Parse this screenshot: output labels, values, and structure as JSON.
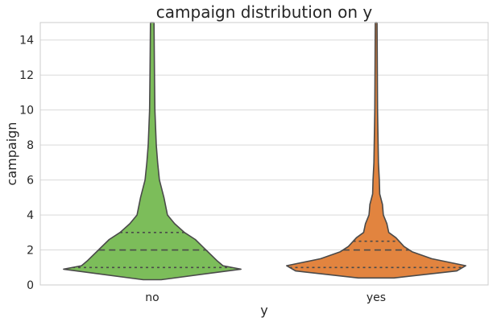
{
  "chart_data": {
    "type": "violin",
    "title": "campaign distribution on y",
    "xlabel": "y",
    "ylabel": "campaign",
    "ylim": [
      0,
      15
    ],
    "yticks": [
      0,
      2,
      4,
      6,
      8,
      10,
      12,
      14
    ],
    "grid": "horizontal",
    "categories": [
      "no",
      "yes"
    ],
    "colors": {
      "no": "#7cbd5a",
      "yes": "#e2843f",
      "outline": "#4a4a4a",
      "grid": "#d9d9d9",
      "axis": "#cccccc"
    },
    "series": [
      {
        "category": "no",
        "quartiles": {
          "q1": 1,
          "median": 2,
          "q3": 3
        },
        "profile": [
          [
            0.3,
            0.1
          ],
          [
            0.9,
            0.99
          ],
          [
            1.1,
            0.79
          ],
          [
            1.4,
            0.72
          ],
          [
            2.0,
            0.6
          ],
          [
            2.6,
            0.48
          ],
          [
            3.0,
            0.36
          ],
          [
            3.5,
            0.25
          ],
          [
            4.0,
            0.17
          ],
          [
            5.0,
            0.13
          ],
          [
            6.0,
            0.08
          ],
          [
            7.0,
            0.06
          ],
          [
            8.0,
            0.045
          ],
          [
            10.0,
            0.03
          ],
          [
            12.0,
            0.025
          ],
          [
            15.0,
            0.02
          ]
        ]
      },
      {
        "category": "yes",
        "quartiles": {
          "q1": 1,
          "median": 2,
          "q3": 2.5
        },
        "profile": [
          [
            0.4,
            0.2
          ],
          [
            0.8,
            0.9
          ],
          [
            1.1,
            1.0
          ],
          [
            1.5,
            0.62
          ],
          [
            1.9,
            0.4
          ],
          [
            2.2,
            0.31
          ],
          [
            2.7,
            0.22
          ],
          [
            3.0,
            0.14
          ],
          [
            3.5,
            0.12
          ],
          [
            4.0,
            0.08
          ],
          [
            4.6,
            0.07
          ],
          [
            5.2,
            0.04
          ],
          [
            6.0,
            0.035
          ],
          [
            7.0,
            0.025
          ],
          [
            10.0,
            0.015
          ],
          [
            15.0,
            0.01
          ]
        ]
      }
    ]
  }
}
